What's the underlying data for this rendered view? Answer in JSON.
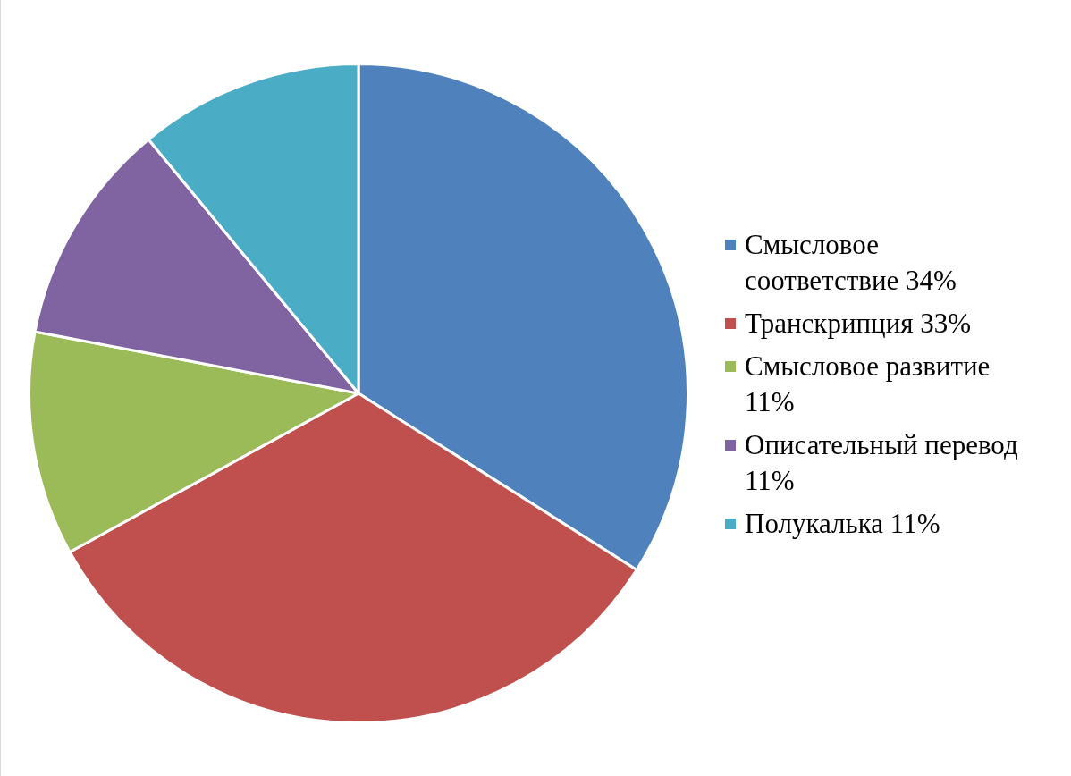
{
  "chart_data": {
    "type": "pie",
    "categories": [
      "Смысловое соответствие 34%",
      "Транскрипция 33%",
      "Смысловое развитие 11%",
      "Описательный перевод 11%",
      "Полукалька 11%"
    ],
    "values": [
      34,
      33,
      11,
      11,
      11
    ],
    "colors": [
      "#4f81bd",
      "#c0504d",
      "#9bbb59",
      "#8064a2",
      "#4bacc6"
    ],
    "legend": "right"
  }
}
